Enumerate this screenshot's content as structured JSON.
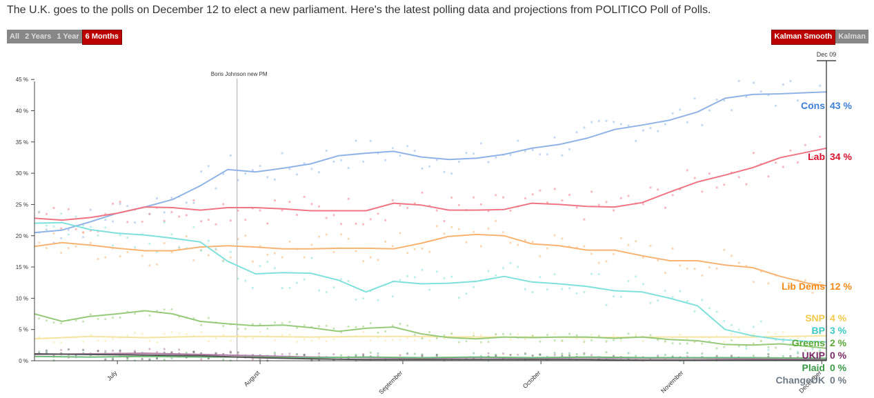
{
  "headline": "The U.K. goes to the polls on December 12 to elect a new parliament. Here's the latest polling data and projections from POLITICO Poll of Polls.",
  "range_buttons": [
    {
      "label": "All",
      "active": false
    },
    {
      "label": "2 Years",
      "active": false
    },
    {
      "label": "1 Year",
      "active": false
    },
    {
      "label": "6 Months",
      "active": true
    }
  ],
  "smoothing_buttons": [
    {
      "label": "Kalman Smooth",
      "active": true
    },
    {
      "label": "Kalman",
      "active": false
    }
  ],
  "chart_data": {
    "type": "line",
    "title": "",
    "xlabel": "",
    "ylabel": "",
    "x_range": [
      0,
      172
    ],
    "ylim": [
      0,
      48
    ],
    "y_ticks": [
      0,
      5,
      10,
      15,
      20,
      25,
      30,
      35,
      40,
      45
    ],
    "y_tick_suffix": " %",
    "x_ticks": [
      {
        "day": 18,
        "label": "July"
      },
      {
        "day": 49,
        "label": "August"
      },
      {
        "day": 80,
        "label": "September"
      },
      {
        "day": 110,
        "label": "October"
      },
      {
        "day": 141,
        "label": "November"
      },
      {
        "day": 171,
        "label": "December"
      }
    ],
    "annotation": {
      "day": 44,
      "label": "Boris Johnson new PM"
    },
    "current_marker": {
      "day": 172,
      "label": "Dec 09"
    },
    "series": [
      {
        "name": "Cons",
        "value_label": "43 %",
        "color": "#3d7ed6",
        "line_color": "#8fb3e6",
        "x": [
          0,
          6,
          12,
          18,
          24,
          30,
          36,
          42,
          48,
          54,
          60,
          66,
          72,
          78,
          84,
          90,
          96,
          102,
          108,
          114,
          120,
          126,
          132,
          138,
          144,
          150,
          156,
          162,
          168,
          172
        ],
        "y": [
          20.5,
          20.9,
          22.2,
          23.6,
          24.6,
          25.8,
          28.0,
          30.6,
          30.2,
          30.8,
          31.5,
          32.8,
          33.2,
          33.5,
          32.6,
          32.2,
          32.4,
          33.0,
          34.0,
          34.6,
          35.6,
          37.0,
          37.7,
          38.5,
          39.8,
          42.0,
          42.6,
          42.7,
          42.9,
          43.0
        ]
      },
      {
        "name": "Lab",
        "value_label": "34 %",
        "color": "#d6112c",
        "line_color": "#ef7584",
        "x": [
          0,
          6,
          12,
          18,
          24,
          30,
          36,
          42,
          48,
          54,
          60,
          66,
          72,
          78,
          84,
          90,
          96,
          102,
          108,
          114,
          120,
          126,
          132,
          138,
          144,
          150,
          156,
          162,
          168,
          172
        ],
        "y": [
          22.8,
          22.5,
          22.9,
          23.6,
          24.6,
          24.5,
          24.1,
          24.5,
          24.5,
          24.3,
          24.0,
          24.0,
          24.0,
          25.2,
          24.9,
          24.1,
          24.1,
          24.2,
          25.2,
          25.0,
          24.7,
          24.6,
          25.3,
          27.0,
          28.6,
          29.7,
          30.9,
          32.5,
          33.4,
          34.0
        ]
      },
      {
        "name": "Lib Dems",
        "value_label": "12 %",
        "color": "#f28a17",
        "line_color": "#f7b371",
        "x": [
          0,
          6,
          12,
          18,
          24,
          30,
          36,
          42,
          48,
          54,
          60,
          66,
          72,
          78,
          84,
          90,
          96,
          102,
          108,
          114,
          120,
          126,
          132,
          138,
          144,
          150,
          156,
          162,
          168,
          172
        ],
        "y": [
          18.3,
          18.9,
          18.5,
          18.0,
          17.6,
          17.6,
          18.2,
          18.4,
          18.2,
          17.9,
          17.9,
          18.0,
          18.0,
          17.9,
          18.8,
          19.9,
          20.2,
          20.0,
          18.7,
          18.4,
          17.7,
          17.7,
          16.8,
          16.0,
          16.0,
          15.3,
          14.9,
          13.5,
          12.4,
          12.0
        ]
      },
      {
        "name": "SNP",
        "value_label": "4 %",
        "color": "#f2c94c",
        "line_color": "#f5e3a0",
        "x": [
          0,
          12,
          24,
          36,
          48,
          60,
          72,
          84,
          96,
          108,
          120,
          132,
          144,
          156,
          172
        ],
        "y": [
          3.5,
          3.9,
          3.7,
          3.9,
          3.9,
          3.8,
          3.9,
          3.9,
          3.8,
          3.8,
          3.7,
          3.8,
          3.8,
          3.8,
          4.0
        ]
      },
      {
        "name": "BP",
        "value_label": "3 %",
        "color": "#3cc9c2",
        "line_color": "#7fe0dc",
        "x": [
          0,
          6,
          12,
          18,
          24,
          30,
          36,
          42,
          48,
          54,
          60,
          66,
          72,
          78,
          84,
          90,
          96,
          102,
          108,
          114,
          120,
          126,
          132,
          138,
          144,
          150,
          156,
          162,
          168,
          172
        ],
        "y": [
          22.0,
          22.1,
          21.0,
          20.4,
          20.1,
          19.6,
          19.0,
          15.9,
          13.9,
          14.1,
          14.0,
          12.9,
          11.0,
          12.7,
          12.3,
          12.4,
          12.7,
          13.5,
          12.6,
          12.3,
          11.9,
          11.2,
          11.0,
          10.0,
          8.8,
          5.0,
          4.0,
          3.4,
          3.1,
          3.0
        ]
      },
      {
        "name": "Greens",
        "value_label": "2 %",
        "color": "#5aa834",
        "line_color": "#96c97a",
        "x": [
          0,
          6,
          12,
          18,
          24,
          30,
          36,
          42,
          48,
          54,
          60,
          66,
          72,
          78,
          84,
          90,
          96,
          102,
          108,
          114,
          120,
          126,
          132,
          138,
          144,
          150,
          156,
          162,
          168,
          172
        ],
        "y": [
          7.5,
          6.3,
          7.1,
          7.5,
          8.0,
          7.5,
          6.3,
          5.9,
          5.6,
          5.7,
          5.3,
          4.7,
          5.2,
          5.4,
          4.3,
          3.7,
          3.5,
          3.8,
          3.7,
          3.8,
          3.8,
          3.6,
          3.8,
          3.4,
          3.2,
          2.6,
          2.5,
          2.7,
          2.3,
          2.0
        ]
      },
      {
        "name": "UKIP",
        "value_label": "0 %",
        "color": "#7b2a66",
        "line_color": "#b07aa4",
        "x": [
          0,
          12,
          24,
          36,
          48,
          60,
          72,
          84,
          96,
          108,
          120,
          132,
          144,
          156,
          172
        ],
        "y": [
          1.0,
          1.1,
          1.2,
          1.0,
          0.8,
          0.6,
          0.5,
          0.4,
          0.5,
          0.4,
          0.5,
          0.4,
          0.4,
          0.3,
          0.2
        ]
      },
      {
        "name": "Plaid",
        "value_label": "0 %",
        "color": "#3a9a48",
        "line_color": "#6fba7b",
        "x": [
          0,
          12,
          24,
          36,
          48,
          60,
          72,
          84,
          96,
          108,
          120,
          132,
          144,
          156,
          172
        ],
        "y": [
          0.7,
          0.6,
          0.7,
          0.6,
          0.6,
          0.5,
          0.6,
          0.5,
          0.6,
          0.5,
          0.6,
          0.5,
          0.5,
          0.5,
          0.4
        ]
      },
      {
        "name": "ChangeUK",
        "value_label": "0 %",
        "color": "#6e7a86",
        "line_color": "#555555",
        "x": [
          0,
          12,
          24,
          36,
          48,
          60,
          72,
          84,
          96,
          108,
          120,
          132,
          144,
          156,
          172
        ],
        "y": [
          1.1,
          1.0,
          0.9,
          0.8,
          0.5,
          0.3,
          0.2,
          0.2,
          0.2,
          0.2,
          0.2,
          0.1,
          0.1,
          0.1,
          0.1
        ]
      }
    ]
  }
}
